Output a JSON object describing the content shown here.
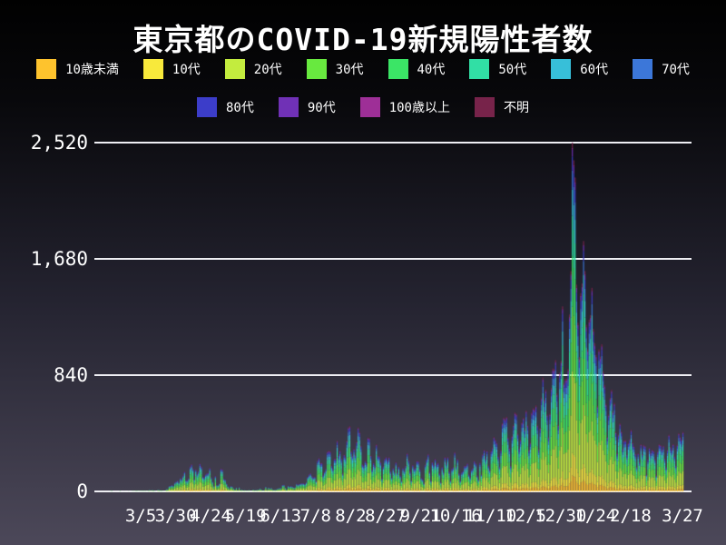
{
  "page": {
    "background_top": "#010101",
    "background_bottom": "#4c4859",
    "text_color": "#ffffff",
    "gridline_color": "#eeeef3"
  },
  "chart_data": {
    "type": "bar",
    "stacked": true,
    "title": "東京都のCOVID-19新規陽性者数",
    "legend_position": "top",
    "grid": "horizontal",
    "xlabel": "",
    "ylabel": "",
    "ylim": [
      0,
      2520
    ],
    "y_ticks": [
      {
        "value": 0,
        "label": "0"
      },
      {
        "value": 840,
        "label": "840"
      },
      {
        "value": 1680,
        "label": "1,680"
      },
      {
        "value": 2520,
        "label": "2,520"
      }
    ],
    "x_ticks": [
      {
        "day": 29,
        "label": "3/5"
      },
      {
        "day": 54,
        "label": "3/30"
      },
      {
        "day": 79,
        "label": "4/24"
      },
      {
        "day": 104,
        "label": "5/19"
      },
      {
        "day": 129,
        "label": "6/13"
      },
      {
        "day": 154,
        "label": "7/8"
      },
      {
        "day": 179,
        "label": "8/2"
      },
      {
        "day": 204,
        "label": "8/27"
      },
      {
        "day": 229,
        "label": "9/21"
      },
      {
        "day": 254,
        "label": "10/16"
      },
      {
        "day": 279,
        "label": "11/10"
      },
      {
        "day": 304,
        "label": "12/5"
      },
      {
        "day": 329,
        "label": "12/30"
      },
      {
        "day": 354,
        "label": "1/24"
      },
      {
        "day": 379,
        "label": "2/18"
      },
      {
        "day": 416,
        "label": "3/27"
      }
    ],
    "age_groups": [
      {
        "name": "10歳未満",
        "color": "#fec32d",
        "share": 0.045
      },
      {
        "name": "10代",
        "color": "#f8e93b",
        "share": 0.065
      },
      {
        "name": "20代",
        "color": "#c3ec3e",
        "share": 0.235
      },
      {
        "name": "30代",
        "color": "#68e93f",
        "share": 0.185
      },
      {
        "name": "40代",
        "color": "#3be566",
        "share": 0.145
      },
      {
        "name": "50代",
        "color": "#31dfa5",
        "share": 0.115
      },
      {
        "name": "60代",
        "color": "#37bfd9",
        "share": 0.075
      },
      {
        "name": "70代",
        "color": "#3c77d9",
        "share": 0.055
      },
      {
        "name": "80代",
        "color": "#3c3dc9",
        "share": 0.04
      },
      {
        "name": "90代",
        "color": "#7031b6",
        "share": 0.02
      },
      {
        "name": "100歳以上",
        "color": "#9e2f97",
        "share": 0.005
      },
      {
        "name": "不明",
        "color": "#77234a",
        "share": 0.015
      }
    ],
    "legend_row_split": 8,
    "daily_totals": [
      0,
      0,
      0,
      0,
      0,
      0,
      0,
      1,
      6,
      0,
      0,
      0,
      0,
      0,
      5,
      0,
      0,
      1,
      0,
      0,
      2,
      0,
      1,
      3,
      2,
      4,
      6,
      2,
      5,
      3,
      6,
      4,
      5,
      2,
      6,
      10,
      2,
      10,
      7,
      4,
      0,
      12,
      9,
      7,
      7,
      3,
      2,
      16,
      17,
      38,
      41,
      47,
      40,
      63,
      72,
      78,
      66,
      97,
      89,
      116,
      143,
      83,
      80,
      97,
      181,
      197,
      166,
      91,
      159,
      127,
      149,
      201,
      181,
      107,
      102,
      123,
      132,
      134,
      170,
      103,
      72,
      39,
      112,
      47,
      46,
      59,
      165,
      160,
      93,
      87,
      57,
      38,
      23,
      39,
      36,
      22,
      15,
      28,
      10,
      30,
      9,
      14,
      5,
      10,
      5,
      5,
      11,
      3,
      2,
      14,
      8,
      10,
      11,
      15,
      22,
      14,
      5,
      13,
      34,
      12,
      28,
      20,
      26,
      14,
      13,
      12,
      18,
      22,
      25,
      24,
      47,
      48,
      27,
      16,
      41,
      35,
      39,
      35,
      29,
      31,
      55,
      48,
      54,
      57,
      60,
      58,
      54,
      67,
      107,
      124,
      131,
      111,
      102,
      106,
      75,
      224,
      243,
      206,
      206,
      119,
      143,
      165,
      286,
      293,
      290,
      188,
      168,
      237,
      238,
      366,
      260,
      295,
      239,
      131,
      266,
      250,
      367,
      463,
      472,
      292,
      258,
      309,
      263,
      360,
      462,
      429,
      331,
      197,
      188,
      222,
      206,
      389,
      385,
      260,
      161,
      207,
      186,
      339,
      258,
      256,
      212,
      95,
      182,
      236,
      250,
      226,
      247,
      148,
      100,
      170,
      141,
      211,
      136,
      181,
      116,
      77,
      170,
      149,
      187,
      276,
      226,
      146,
      80,
      191,
      163,
      171,
      220,
      218,
      162,
      98,
      88,
      59,
      195,
      235,
      270,
      144,
      78,
      212,
      194,
      235,
      196,
      207,
      132,
      66,
      177,
      142,
      248,
      203,
      249,
      146,
      78,
      166,
      177,
      284,
      184,
      235,
      132,
      78,
      139,
      150,
      185,
      186,
      203,
      124,
      102,
      158,
      171,
      220,
      204,
      116,
      87,
      209,
      122,
      269,
      300,
      242,
      294,
      189,
      157,
      293,
      317,
      393,
      374,
      352,
      255,
      180,
      298,
      493,
      534,
      522,
      539,
      391,
      314,
      186,
      401,
      481,
      570,
      561,
      418,
      311,
      372,
      500,
      533,
      449,
      584,
      480,
      299,
      352,
      572,
      602,
      595,
      621,
      480,
      305,
      460,
      678,
      822,
      664,
      736,
      556,
      392,
      563,
      748,
      888,
      884,
      949,
      708,
      481,
      856,
      944,
      1337,
      783,
      814,
      816,
      884,
      1278,
      1591,
      2520,
      2392,
      2268,
      1494,
      1219,
      970,
      1433,
      1502,
      1809,
      1592,
      1204,
      1026,
      1240,
      1274,
      1471,
      1175,
      1070,
      986,
      618,
      1026,
      973,
      1064,
      868,
      769,
      633,
      393,
      556,
      676,
      734,
      577,
      639,
      429,
      276,
      412,
      491,
      434,
      307,
      369,
      371,
      266,
      350,
      378,
      445,
      353,
      327,
      272,
      178,
      275,
      213,
      340,
      270,
      337,
      329,
      121,
      232,
      316,
      279,
      301,
      293,
      237,
      116,
      290,
      340,
      335,
      304,
      330,
      239,
      175,
      300,
      409,
      323,
      303,
      342,
      256,
      187,
      337,
      420,
      394,
      376,
      430
    ]
  }
}
